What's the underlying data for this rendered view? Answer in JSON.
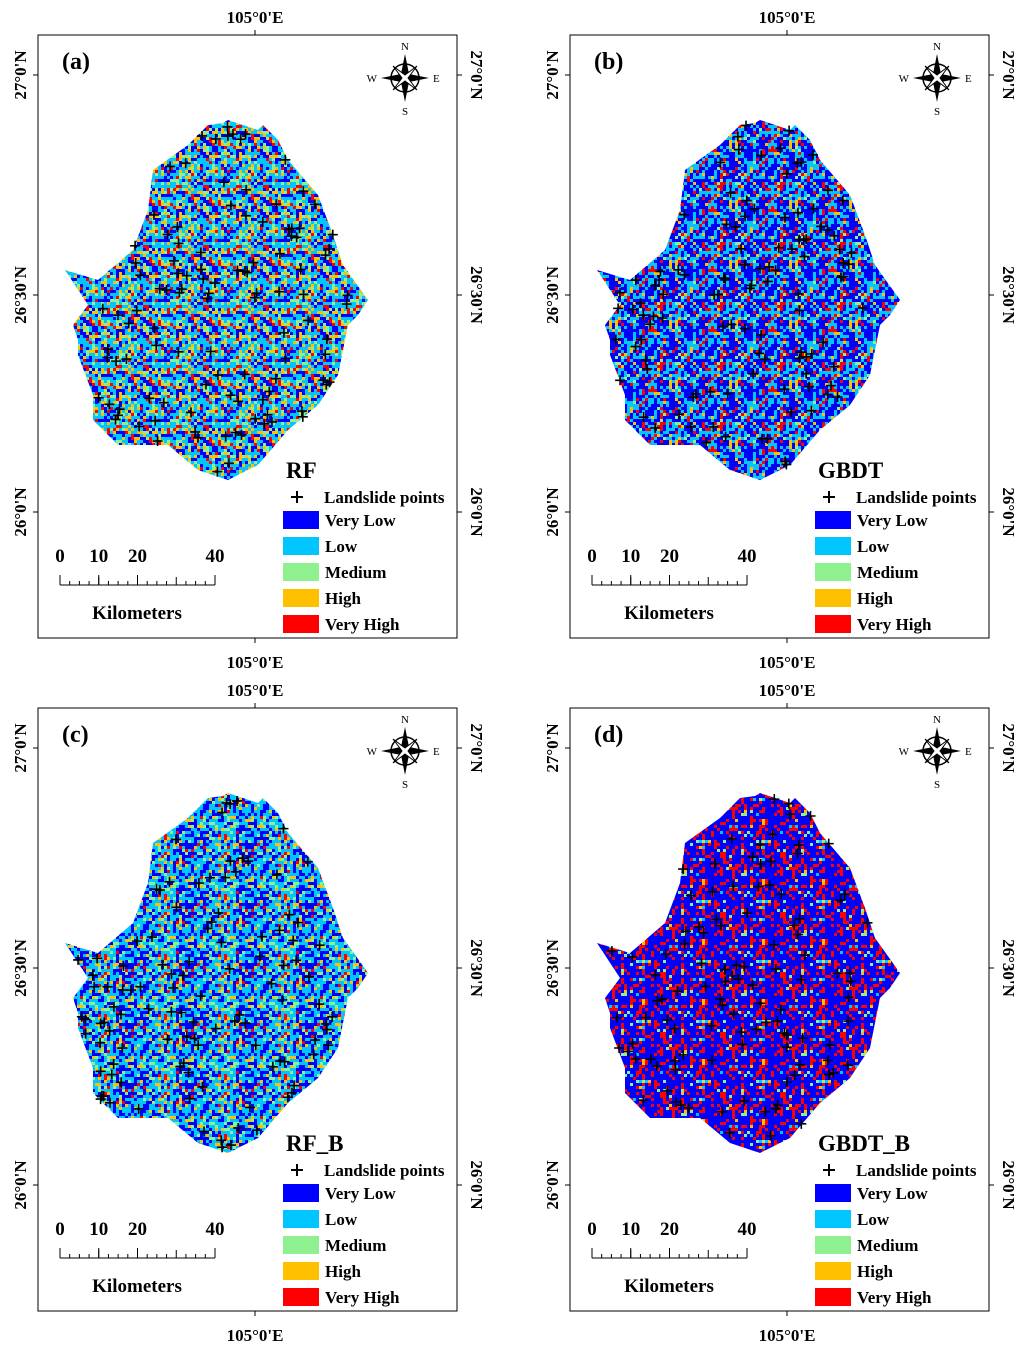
{
  "panels": [
    {
      "label": "(a)",
      "model": "RF"
    },
    {
      "label": "(b)",
      "model": "GBDT"
    },
    {
      "label": "(c)",
      "model": "RF_B"
    },
    {
      "label": "(d)",
      "model": "GBDT_B"
    }
  ],
  "longitude_label": "105°0'E",
  "latitude_labels": [
    "27°0'N",
    "26°30'N",
    "26°0'N"
  ],
  "compass": {
    "north": "N",
    "south": "S",
    "west": "W",
    "east": "E"
  },
  "legend": {
    "points": "Landslide points",
    "classes": [
      {
        "name": "Very Low",
        "color": "#0000ff"
      },
      {
        "name": "Low",
        "color": "#00c5ff"
      },
      {
        "name": "Medium",
        "color": "#8ef08e"
      },
      {
        "name": "High",
        "color": "#ffc000"
      },
      {
        "name": "Very High",
        "color": "#ff0000"
      }
    ]
  },
  "scale_bar": {
    "ticks": [
      0,
      10,
      20,
      40
    ],
    "unit": "Kilometers"
  }
}
